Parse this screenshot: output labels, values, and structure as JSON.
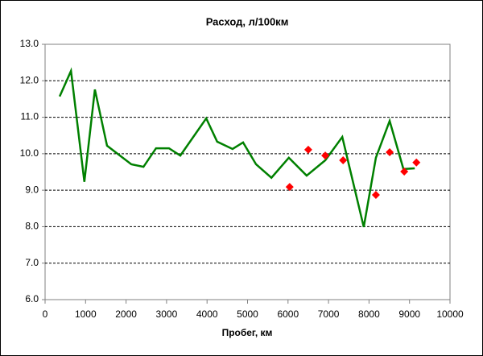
{
  "chart_data": {
    "type": "line",
    "title": "Расход, л/100км",
    "x_label": "Пробег, км",
    "xlim": [
      0,
      10000
    ],
    "xticks": [
      0,
      1000,
      2000,
      3000,
      4000,
      5000,
      6000,
      7000,
      8000,
      9000,
      10000
    ],
    "ylim": [
      6,
      13
    ],
    "yticks": [
      {
        "value": 6,
        "label": "6.0"
      },
      {
        "value": 7,
        "label": "7.0"
      },
      {
        "value": 8,
        "label": "8.0"
      },
      {
        "value": 9,
        "label": "9.0"
      },
      {
        "value": 10,
        "label": "10.0"
      },
      {
        "value": 11,
        "label": "11.0"
      },
      {
        "value": 12,
        "label": "12.0"
      },
      {
        "value": 13,
        "label": "13.0"
      }
    ],
    "grid": true,
    "series": [
      {
        "type": "line",
        "color": "#008000",
        "x": [
          360,
          640,
          970,
          1230,
          1530,
          2130,
          2430,
          2740,
          3060,
          3340,
          3980,
          4250,
          4630,
          4890,
          5210,
          5590,
          6020,
          6460,
          6920,
          7340,
          7870,
          8170,
          8510,
          8850,
          9130
        ],
        "values": [
          11.57,
          12.27,
          9.23,
          11.76,
          10.22,
          9.71,
          9.64,
          10.15,
          10.15,
          9.95,
          10.97,
          10.33,
          10.13,
          10.31,
          9.71,
          9.34,
          9.89,
          9.4,
          9.82,
          10.46,
          7.99,
          9.89,
          10.9,
          9.58,
          9.6
        ]
      },
      {
        "type": "scatter",
        "color": "#ff0000",
        "x": [
          6040,
          6500,
          6920,
          7360,
          8170,
          8510,
          8870,
          9170
        ],
        "values": [
          9.09,
          10.11,
          9.95,
          9.82,
          8.87,
          10.04,
          9.51,
          9.76
        ]
      }
    ]
  }
}
